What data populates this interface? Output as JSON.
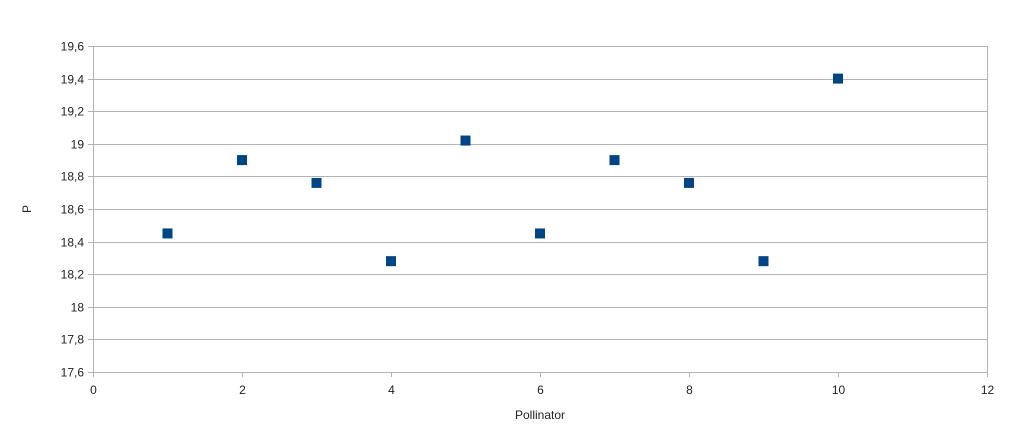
{
  "chart_data": {
    "type": "scatter",
    "title": "",
    "xlabel": "Pollinator",
    "ylabel": "P",
    "xlim": [
      0,
      12
    ],
    "ylim": [
      17.6,
      19.6
    ],
    "x_ticks": [
      "0",
      "2",
      "4",
      "6",
      "8",
      "10",
      "12"
    ],
    "y_ticks": [
      "17,6",
      "17,8",
      "18",
      "18,2",
      "18,4",
      "18,6",
      "18,8",
      "19",
      "19,2",
      "19,4",
      "19,6"
    ],
    "grid": true,
    "legend": "none",
    "marker": "square",
    "colors": {
      "series": "#004586",
      "grid": "#b3b3b3"
    },
    "series": [
      {
        "x": [
          1,
          2,
          3,
          4,
          5,
          6,
          7,
          8,
          9,
          10
        ],
        "y": [
          18.45,
          18.9,
          18.76,
          18.28,
          19.02,
          18.45,
          18.9,
          18.76,
          18.28,
          19.4
        ]
      }
    ]
  }
}
